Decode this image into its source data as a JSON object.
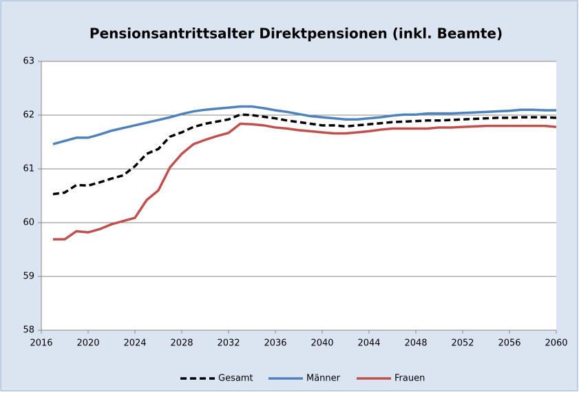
{
  "chart_data": {
    "type": "line",
    "title": "Pensionsantrittsalter Direktpensionen (inkl. Beamte)",
    "x": [
      2017,
      2018,
      2019,
      2020,
      2021,
      2022,
      2023,
      2024,
      2025,
      2026,
      2027,
      2028,
      2029,
      2030,
      2031,
      2032,
      2033,
      2034,
      2035,
      2036,
      2037,
      2038,
      2039,
      2040,
      2041,
      2042,
      2043,
      2044,
      2045,
      2046,
      2047,
      2048,
      2049,
      2050,
      2051,
      2052,
      2053,
      2054,
      2055,
      2056,
      2057,
      2058,
      2059,
      2060
    ],
    "series": [
      {
        "name": "Gesamt",
        "color": "#000000",
        "dashed": true,
        "values": [
          60.53,
          60.56,
          60.7,
          60.69,
          60.75,
          60.82,
          60.88,
          61.05,
          61.28,
          61.37,
          61.6,
          61.68,
          61.78,
          61.84,
          61.88,
          61.92,
          62.01,
          62.0,
          61.97,
          61.94,
          61.9,
          61.87,
          61.84,
          61.81,
          61.81,
          61.79,
          61.81,
          61.83,
          61.85,
          61.87,
          61.88,
          61.89,
          61.9,
          61.9,
          61.91,
          61.92,
          61.93,
          61.94,
          61.95,
          61.95,
          61.96,
          61.96,
          61.96,
          61.95
        ]
      },
      {
        "name": "Männer",
        "color": "#4f81bd",
        "dashed": false,
        "values": [
          61.46,
          61.52,
          61.58,
          61.58,
          61.64,
          61.71,
          61.76,
          61.81,
          61.86,
          61.91,
          61.96,
          62.02,
          62.07,
          62.1,
          62.12,
          62.14,
          62.16,
          62.16,
          62.13,
          62.09,
          62.06,
          62.02,
          61.98,
          61.96,
          61.94,
          61.92,
          61.92,
          61.94,
          61.96,
          61.99,
          62.01,
          62.01,
          62.03,
          62.03,
          62.03,
          62.04,
          62.05,
          62.06,
          62.07,
          62.08,
          62.1,
          62.1,
          62.09,
          62.09
        ]
      },
      {
        "name": "Frauen",
        "color": "#c0504d",
        "dashed": false,
        "values": [
          59.69,
          59.69,
          59.84,
          59.82,
          59.88,
          59.97,
          60.03,
          60.09,
          60.42,
          60.6,
          61.03,
          61.28,
          61.46,
          61.54,
          61.61,
          61.67,
          61.84,
          61.83,
          61.81,
          61.77,
          61.75,
          61.72,
          61.7,
          61.68,
          61.66,
          61.66,
          61.68,
          61.7,
          61.73,
          61.75,
          61.75,
          61.75,
          61.75,
          61.77,
          61.77,
          61.78,
          61.79,
          61.8,
          61.8,
          61.8,
          61.8,
          61.8,
          61.8,
          61.78
        ]
      }
    ],
    "xlim": [
      2016,
      2060
    ],
    "xticks": [
      2016,
      2020,
      2024,
      2028,
      2032,
      2036,
      2040,
      2044,
      2048,
      2052,
      2056,
      2060
    ],
    "ylim": [
      58,
      63
    ],
    "yticks": [
      58,
      59,
      60,
      61,
      62,
      63
    ],
    "grid": true,
    "legend": "bottom"
  }
}
